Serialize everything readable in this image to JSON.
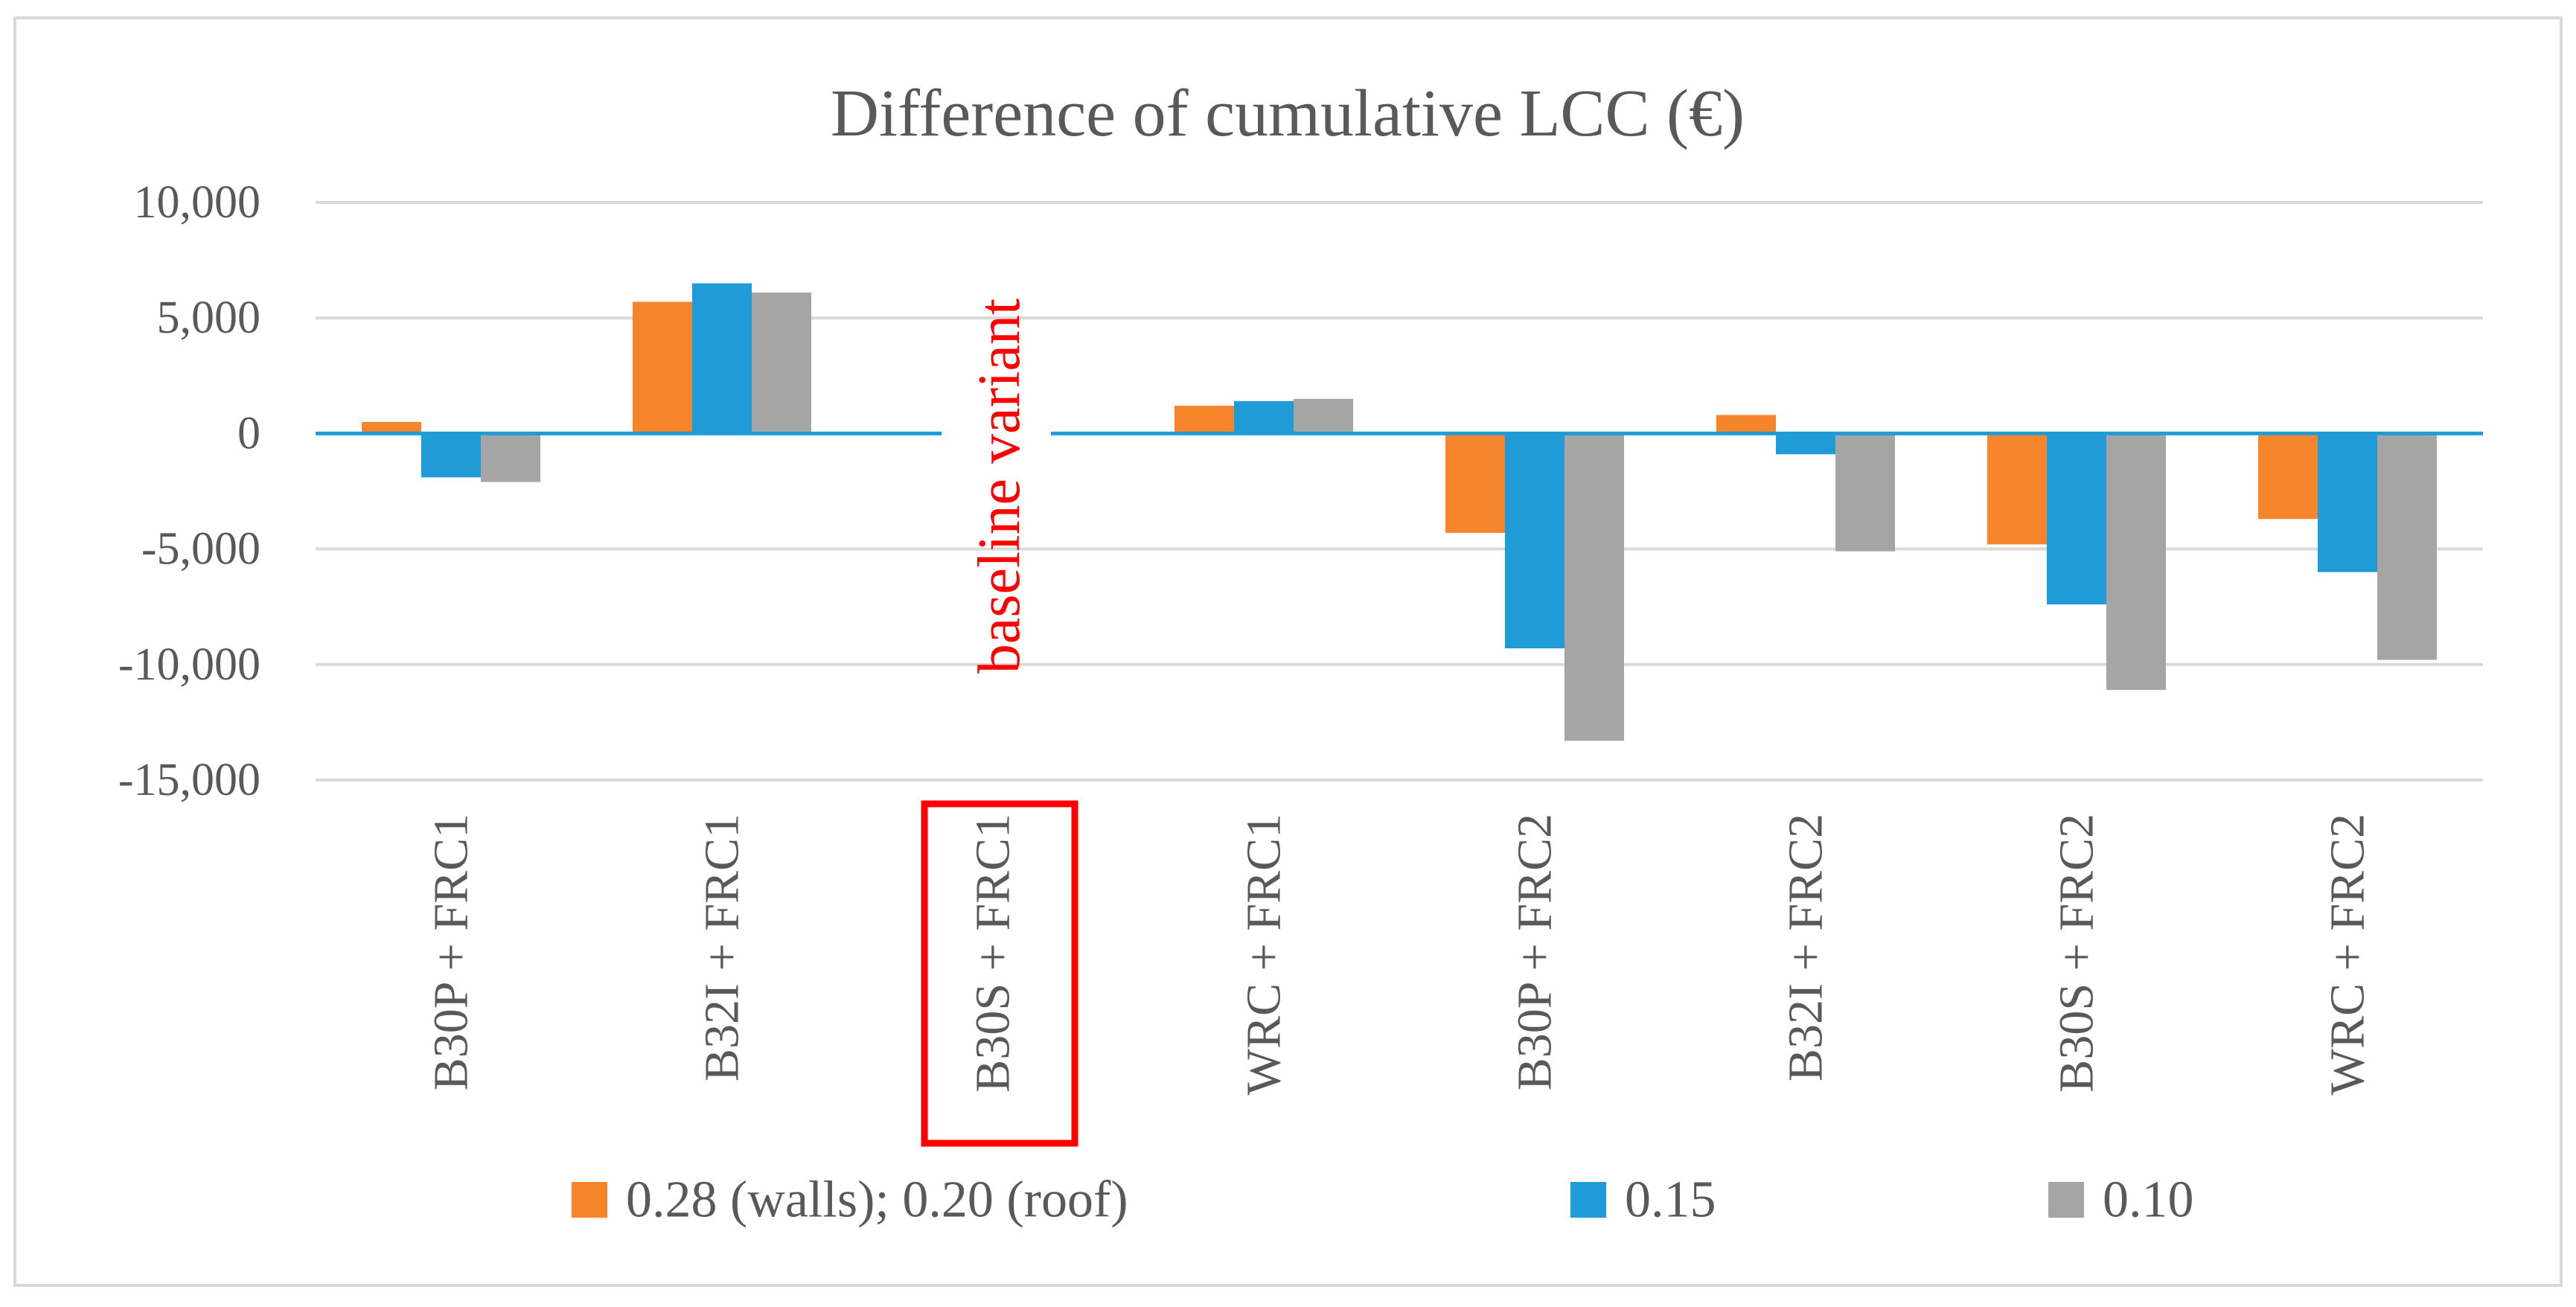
{
  "chart_data": {
    "type": "bar",
    "title": "Difference of cumulative LCC (€)",
    "xlabel": "",
    "ylabel": "",
    "ylim": [
      -15000,
      10000
    ],
    "yticks": [
      10000,
      5000,
      0,
      -5000,
      -10000,
      -15000
    ],
    "ytick_labels": [
      "10,000",
      "5,000",
      "0",
      "-5,000",
      "-10,000",
      "-15,000"
    ],
    "categories": [
      "B30P + FRC1",
      "B32I + FRC1",
      "B30S + FRC1",
      "WRC + FRC1",
      "B30P + FRC2",
      "B32I + FRC2",
      "B30S + FRC2",
      "WRC + FRC2"
    ],
    "series": [
      {
        "name": "0.28 (walls); 0.20 (roof)",
        "color": "#f5842a",
        "values": [
          500,
          5700,
          null,
          1200,
          -4300,
          800,
          -4800,
          -3700
        ]
      },
      {
        "name": "0.15",
        "color": "#1f9bd7",
        "values": [
          -1900,
          6500,
          null,
          1400,
          -9300,
          -900,
          -7400,
          -6000
        ]
      },
      {
        "name": "0.10",
        "color": "#a5a5a5",
        "values": [
          -2100,
          6100,
          null,
          1500,
          -13300,
          -5100,
          -11100,
          -9800
        ]
      }
    ],
    "annotation": {
      "text": "baseline variant",
      "category_index": 2,
      "color": "#ff0000",
      "highlight_color": "#ff0000"
    },
    "gridlines": true,
    "legend_position": "bottom",
    "zero_line_color": "#1f9bd7",
    "grid_color": "#d9d9d9",
    "text_color": "#595959",
    "frame_color": "#d9d9d9"
  }
}
